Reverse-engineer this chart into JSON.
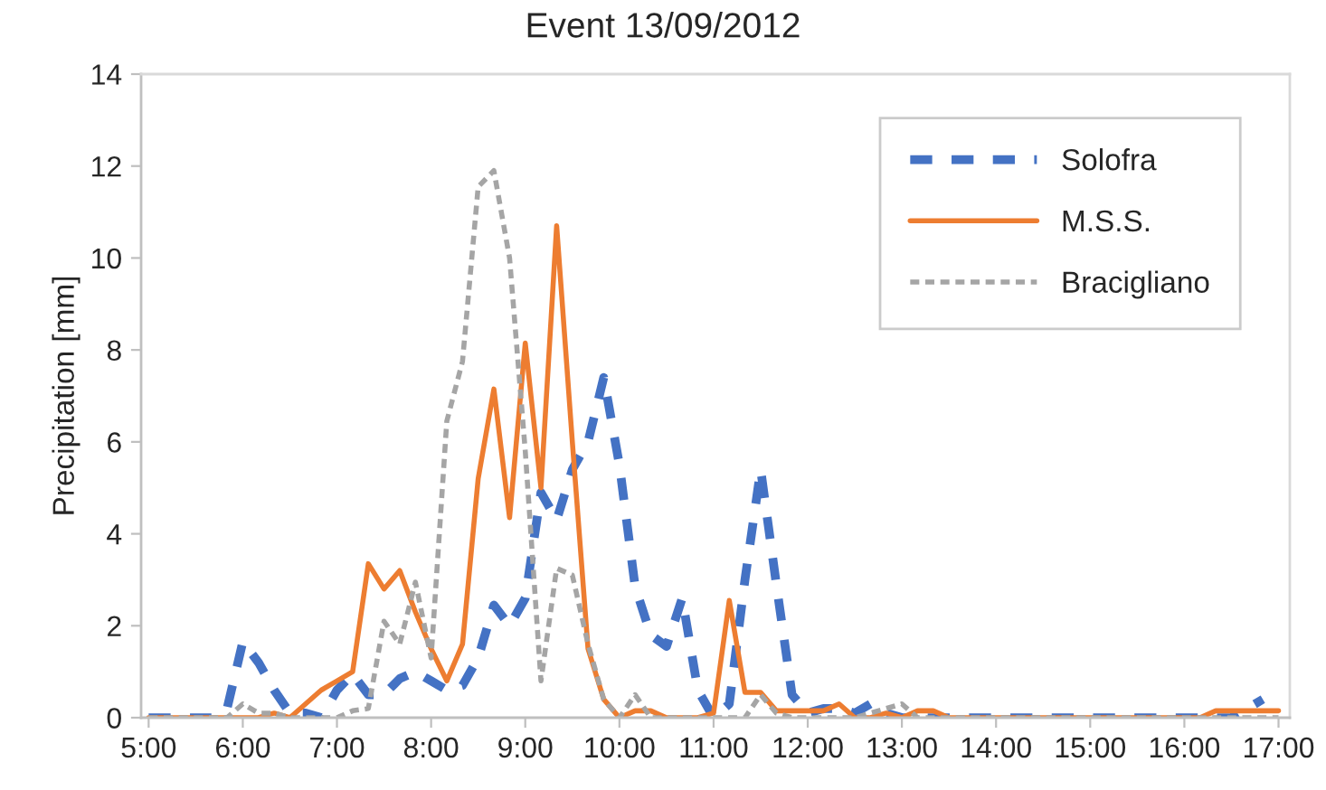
{
  "chart_data": {
    "type": "line",
    "title": "Event 13/09/2012",
    "ylabel": "Precipitation [mm]",
    "x": [
      5,
      5.1667,
      5.3333,
      5.5,
      5.6667,
      5.8333,
      6,
      6.1667,
      6.3333,
      6.5,
      6.6667,
      6.8333,
      7,
      7.1667,
      7.3333,
      7.5,
      7.6667,
      7.8333,
      8,
      8.1667,
      8.3333,
      8.5,
      8.6667,
      8.8333,
      9,
      9.1667,
      9.3333,
      9.5,
      9.6667,
      9.8333,
      10,
      10.1667,
      10.3333,
      10.5,
      10.6667,
      10.8333,
      11,
      11.1667,
      11.3333,
      11.5,
      11.6667,
      11.8333,
      12,
      12.1667,
      12.3333,
      12.5,
      12.6667,
      12.8333,
      13,
      13.1667,
      13.3333,
      13.5,
      13.6667,
      13.8333,
      14,
      14.1667,
      14.3333,
      14.5,
      14.6667,
      14.8333,
      15,
      15.1667,
      15.3333,
      15.5,
      15.6667,
      15.8333,
      16,
      16.1667,
      16.3333,
      16.5,
      16.6667,
      16.8333,
      17
    ],
    "series": [
      {
        "name": "Solofra",
        "color": "#4472c4",
        "line_style": "dashed",
        "values": [
          0,
          0,
          0,
          0,
          0,
          0.2,
          1.65,
          1.2,
          0.6,
          0.1,
          0.1,
          0,
          0.6,
          0.95,
          0.5,
          0.5,
          0.85,
          1.0,
          0.8,
          0.6,
          0.7,
          1.3,
          2.45,
          2.0,
          2.6,
          4.9,
          4.3,
          5.4,
          6.0,
          7.4,
          5.5,
          2.85,
          1.8,
          1.55,
          2.6,
          0.6,
          0,
          0.3,
          3.0,
          5.4,
          2.9,
          0.5,
          0.1,
          0.2,
          0.2,
          0.1,
          0.3,
          0.1,
          0,
          0,
          0,
          0,
          0,
          0,
          0,
          0,
          0,
          0,
          0,
          0,
          0,
          0,
          0,
          0,
          0,
          0,
          0,
          0,
          0,
          0,
          0.2,
          0.4,
          null
        ]
      },
      {
        "name": "M.S.S.",
        "color": "#ed7d31",
        "line_style": "solid",
        "values": [
          0,
          0,
          0,
          0,
          0,
          0,
          0,
          0,
          0.1,
          0,
          0.3,
          0.6,
          0.8,
          1.0,
          3.35,
          2.8,
          3.2,
          2.3,
          1.5,
          0.8,
          1.6,
          5.2,
          7.15,
          4.35,
          8.15,
          5.0,
          10.7,
          6.0,
          1.5,
          0.4,
          0,
          0.15,
          0.15,
          0,
          0,
          0,
          0.1,
          2.55,
          0.55,
          0.55,
          0.15,
          0.15,
          0.15,
          0.15,
          0.3,
          0,
          0,
          0.1,
          0,
          0.15,
          0.15,
          0,
          0,
          0,
          0,
          0,
          0,
          0,
          0,
          0,
          0,
          0,
          0,
          0,
          0,
          0,
          0,
          0,
          0.15,
          0.15,
          0.15,
          0.15,
          0.15
        ]
      },
      {
        "name": "Bracigliano",
        "color": "#a5a5a5",
        "line_style": "dotted",
        "values": [
          0,
          0,
          0,
          0,
          0,
          0,
          0.3,
          0.1,
          0.1,
          0,
          0,
          0,
          0,
          0.15,
          0.2,
          2.1,
          1.6,
          2.95,
          1.3,
          6.45,
          7.75,
          11.55,
          11.9,
          10.0,
          5.8,
          0.8,
          3.25,
          3.1,
          1.6,
          0.4,
          0,
          0.5,
          0,
          0,
          0,
          0,
          0,
          0,
          0,
          0.5,
          0.1,
          0,
          0,
          0,
          0,
          0,
          0.1,
          0.2,
          0.3,
          0,
          0,
          0,
          0,
          0,
          0,
          0,
          0,
          0,
          0,
          0,
          0,
          0,
          0,
          0,
          0,
          0,
          0,
          0,
          0,
          0,
          0,
          0,
          0
        ]
      }
    ],
    "xlim": [
      4.92,
      17.12
    ],
    "xticks": [
      {
        "value": 5,
        "label": "5:00"
      },
      {
        "value": 6,
        "label": "6:00"
      },
      {
        "value": 7,
        "label": "7:00"
      },
      {
        "value": 8,
        "label": "8:00"
      },
      {
        "value": 9,
        "label": "9:00"
      },
      {
        "value": 10,
        "label": "10:00"
      },
      {
        "value": 11,
        "label": "11:00"
      },
      {
        "value": 12,
        "label": "12:00"
      },
      {
        "value": 13,
        "label": "13:00"
      },
      {
        "value": 14,
        "label": "14:00"
      },
      {
        "value": 15,
        "label": "15:00"
      },
      {
        "value": 16,
        "label": "16:00"
      },
      {
        "value": 17,
        "label": "17:00"
      }
    ],
    "ylim": [
      0,
      14
    ],
    "yticks": [
      0,
      2,
      4,
      6,
      8,
      10,
      12,
      14
    ],
    "grid": false,
    "legend": "top right"
  }
}
